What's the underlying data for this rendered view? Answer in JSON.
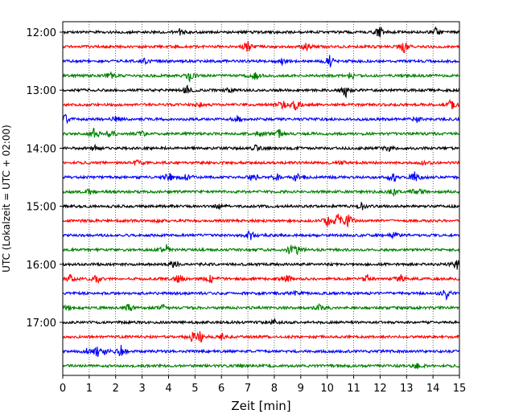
{
  "chart_data": {
    "type": "line",
    "title": "",
    "xlabel": "Zeit  [min]",
    "ylabel": "UTC (Lokalzeit = UTC + 02:00)",
    "xlim": [
      0,
      15
    ],
    "x_ticks": [
      0,
      1,
      2,
      3,
      4,
      5,
      6,
      7,
      8,
      9,
      10,
      11,
      12,
      13,
      14,
      15
    ],
    "y_tick_labels": [
      "12:00",
      "13:00",
      "14:00",
      "15:00",
      "16:00",
      "17:00"
    ],
    "grid": "vertical dotted lines at each minute",
    "trace_interval_min": 15,
    "trace_colors": [
      "#000000",
      "#ff0000",
      "#0000ff",
      "#008000"
    ],
    "traces": [
      {
        "start": "12:00",
        "events": [
          [
            4.4,
            0.5
          ],
          [
            12.0,
            1.0
          ],
          [
            14.1,
            0.6
          ]
        ]
      },
      {
        "start": "12:15",
        "events": [
          [
            7.0,
            0.9
          ],
          [
            9.2,
            0.5
          ],
          [
            12.9,
            0.8
          ]
        ]
      },
      {
        "start": "12:30",
        "events": [
          [
            10.1,
            0.8
          ],
          [
            3.1,
            0.4
          ],
          [
            8.3,
            0.4
          ]
        ]
      },
      {
        "start": "12:45",
        "events": [
          [
            1.8,
            0.5
          ],
          [
            4.8,
            0.6
          ],
          [
            7.3,
            0.6
          ],
          [
            10.9,
            0.5
          ]
        ]
      },
      {
        "start": "13:00",
        "events": [
          [
            4.7,
            0.6
          ],
          [
            10.7,
            1.0
          ],
          [
            6.3,
            0.3
          ]
        ]
      },
      {
        "start": "13:15",
        "events": [
          [
            8.3,
            0.6
          ],
          [
            8.8,
            0.7
          ],
          [
            14.7,
            0.8
          ],
          [
            5.2,
            0.3
          ]
        ]
      },
      {
        "start": "13:30",
        "events": [
          [
            0.1,
            0.6
          ],
          [
            2.0,
            0.5
          ],
          [
            6.6,
            0.4
          ],
          [
            13.4,
            0.4
          ]
        ]
      },
      {
        "start": "13:45",
        "events": [
          [
            1.2,
            0.8
          ],
          [
            1.8,
            0.7
          ],
          [
            7.5,
            0.5
          ],
          [
            8.2,
            0.6
          ],
          [
            3.0,
            0.3
          ]
        ]
      },
      {
        "start": "14:00",
        "events": [
          [
            1.2,
            0.4
          ],
          [
            7.3,
            0.4
          ],
          [
            12.3,
            0.4
          ]
        ]
      },
      {
        "start": "14:15",
        "events": [
          [
            2.8,
            0.4
          ],
          [
            10.5,
            0.3
          ],
          [
            13.7,
            0.3
          ]
        ]
      },
      {
        "start": "14:30",
        "events": [
          [
            4.0,
            0.8
          ],
          [
            4.7,
            0.6
          ],
          [
            7.2,
            0.6
          ],
          [
            8.1,
            0.7
          ],
          [
            8.9,
            0.9
          ],
          [
            12.5,
            0.7
          ],
          [
            13.3,
            0.8
          ]
        ]
      },
      {
        "start": "14:45",
        "events": [
          [
            1.0,
            0.5
          ],
          [
            12.5,
            0.4
          ],
          [
            13.4,
            0.9
          ]
        ]
      },
      {
        "start": "15:00",
        "events": [
          [
            5.9,
            0.4
          ],
          [
            11.3,
            0.5
          ]
        ]
      },
      {
        "start": "15:15",
        "events": [
          [
            10.0,
            0.7
          ],
          [
            10.4,
            1.0
          ],
          [
            10.8,
            0.9
          ],
          [
            3.6,
            0.3
          ]
        ]
      },
      {
        "start": "15:30",
        "events": [
          [
            7.1,
            0.8
          ],
          [
            12.5,
            0.3
          ]
        ]
      },
      {
        "start": "15:45",
        "events": [
          [
            3.9,
            0.8
          ],
          [
            8.6,
            0.7
          ],
          [
            8.9,
            0.5
          ]
        ]
      },
      {
        "start": "16:00",
        "events": [
          [
            4.2,
            0.6
          ],
          [
            14.9,
            0.7
          ]
        ]
      },
      {
        "start": "16:15",
        "events": [
          [
            0.3,
            0.8
          ],
          [
            1.3,
            0.7
          ],
          [
            4.4,
            0.7
          ],
          [
            5.6,
            0.6
          ],
          [
            8.5,
            0.5
          ],
          [
            11.5,
            0.6
          ],
          [
            12.8,
            0.5
          ]
        ]
      },
      {
        "start": "16:30",
        "events": [
          [
            14.5,
            0.7
          ],
          [
            8.8,
            0.3
          ]
        ]
      },
      {
        "start": "16:45",
        "events": [
          [
            0.2,
            0.4
          ],
          [
            2.5,
            0.6
          ],
          [
            3.8,
            0.4
          ],
          [
            9.7,
            0.4
          ]
        ]
      },
      {
        "start": "17:00",
        "events": [
          [
            8.0,
            0.3
          ]
        ]
      },
      {
        "start": "17:15",
        "events": [
          [
            4.9,
            0.6
          ],
          [
            5.2,
            0.8
          ],
          [
            6.0,
            0.4
          ]
        ]
      },
      {
        "start": "17:30",
        "events": [
          [
            1.3,
            0.7
          ],
          [
            1.6,
            0.6
          ],
          [
            2.2,
            0.8
          ],
          [
            0.9,
            0.3
          ]
        ]
      },
      {
        "start": "17:45",
        "events": [
          [
            13.4,
            0.4
          ]
        ]
      }
    ]
  }
}
